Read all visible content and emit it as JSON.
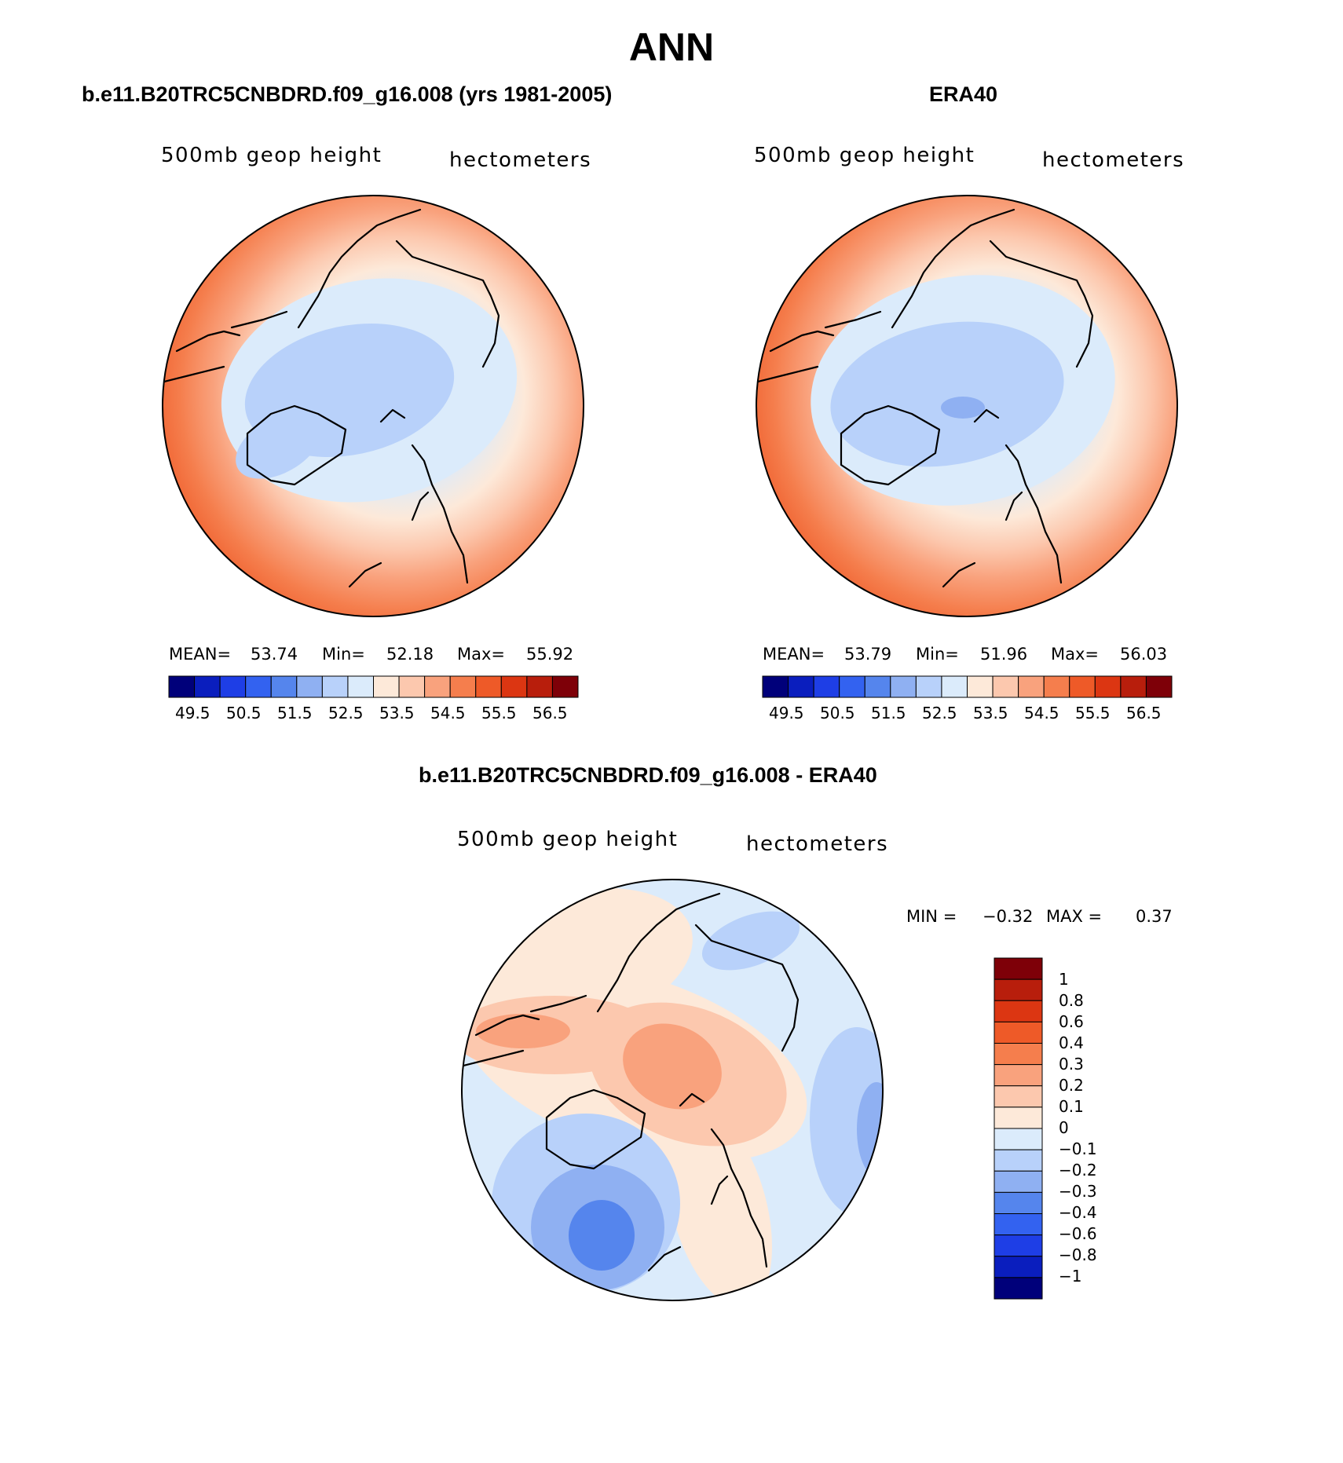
{
  "figure_title": "ANN",
  "colors": {
    "abs_scale": [
      "#00007a",
      "#0a1ebe",
      "#1e3ee6",
      "#3362f0",
      "#5585ed",
      "#8fb0f2",
      "#b8d1fa",
      "#dbebfb",
      "#fde9d9",
      "#fcc8ae",
      "#f9a27d",
      "#f57e4d",
      "#ee5a28",
      "#dc3612",
      "#b81e0c",
      "#7e0008"
    ],
    "diff_scale": [
      "#00007a",
      "#0a1ebe",
      "#1e3ee6",
      "#3362f0",
      "#5585ed",
      "#8fb0f2",
      "#b8d1fa",
      "#dbebfb",
      "#fde9d9",
      "#fcc8ae",
      "#f9a27d",
      "#f57e4d",
      "#ee5a28",
      "#dc3612",
      "#b81e0c",
      "#7e0008"
    ]
  },
  "panels": [
    {
      "title": "b.e11.B20TRC5CNBDRD.f09_g16.008 (yrs 1981-2005)",
      "variable": "500mb geop height",
      "units": "hectometers",
      "stats": {
        "mean_label": "MEAN=",
        "mean": "53.74",
        "min_label": "Min=",
        "min": "52.18",
        "max_label": "Max=",
        "max": "55.92"
      },
      "colorbar_ticks": [
        "49.5",
        "50.5",
        "51.5",
        "52.5",
        "53.5",
        "54.5",
        "55.5",
        "56.5"
      ]
    },
    {
      "title": "ERA40",
      "variable": "500mb geop height",
      "units": "hectometers",
      "stats": {
        "mean_label": "MEAN=",
        "mean": "53.79",
        "min_label": "Min=",
        "min": "51.96",
        "max_label": "Max=",
        "max": "56.03"
      },
      "colorbar_ticks": [
        "49.5",
        "50.5",
        "51.5",
        "52.5",
        "53.5",
        "54.5",
        "55.5",
        "56.5"
      ]
    },
    {
      "title": "b.e11.B20TRC5CNBDRD.f09_g16.008 - ERA40",
      "variable": "500mb geop height",
      "units": "hectometers",
      "stats": {
        "min_label": "MIN =",
        "min": "−0.32",
        "max_label": "MAX =",
        "max": "0.37"
      },
      "colorbar_ticks": [
        "1",
        "0.8",
        "0.6",
        "0.4",
        "0.3",
        "0.2",
        "0.1",
        "0",
        "−0.1",
        "−0.2",
        "−0.3",
        "−0.4",
        "−0.6",
        "−0.8",
        "−1"
      ]
    }
  ]
}
